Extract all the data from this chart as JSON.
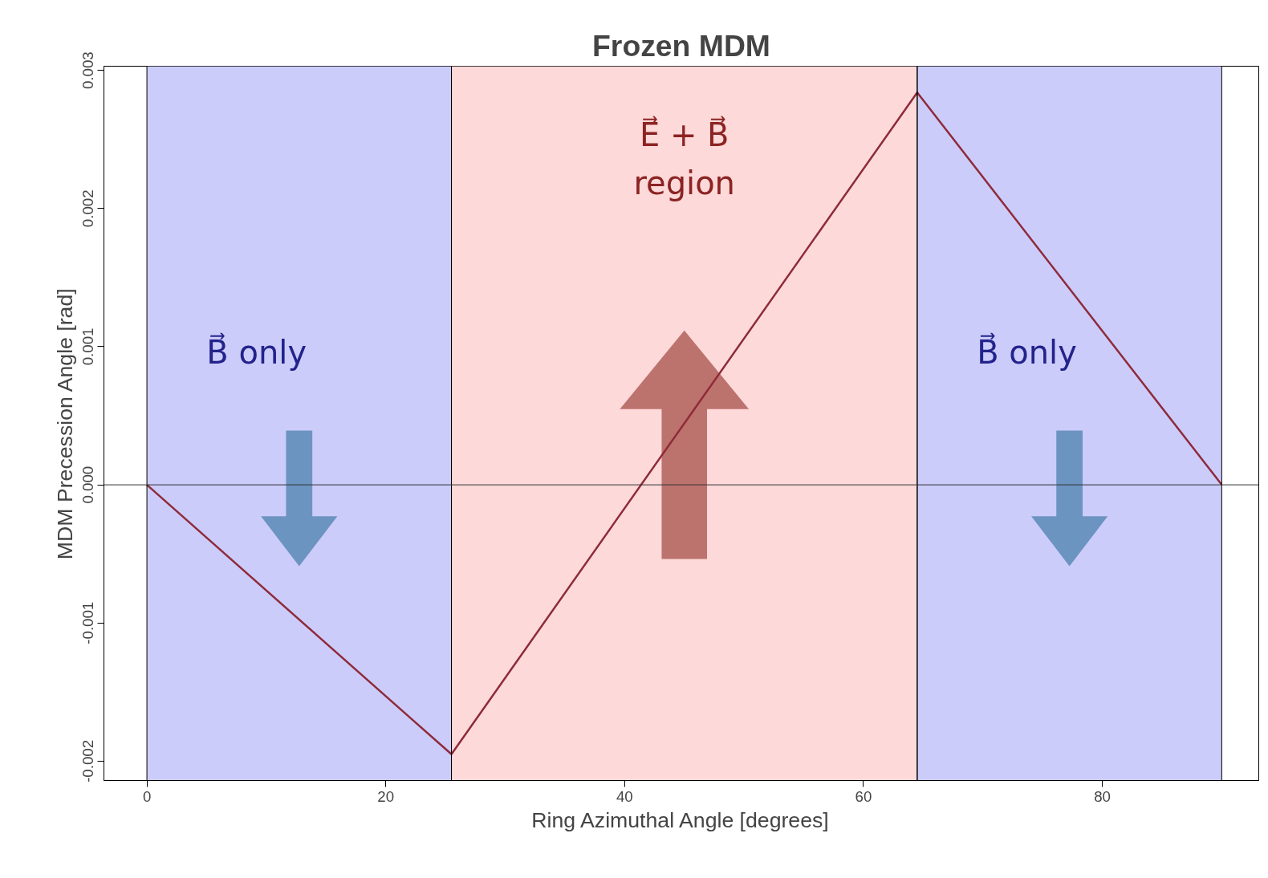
{
  "chart_data": {
    "type": "line",
    "title": "Frozen MDM",
    "xlabel": "Ring Azimuthal Angle [degrees]",
    "ylabel": "MDM Precession Angle [rad]",
    "x": [
      0,
      25.5,
      64.5,
      90
    ],
    "series": [
      {
        "color": "#8e2b3a",
        "values": [
          0,
          -0.00195,
          0.00284,
          0
        ]
      }
    ],
    "xlim": [
      -3.6,
      93.1
    ],
    "ylim": [
      -0.00214,
      0.00303
    ],
    "xticks": [
      0,
      20,
      40,
      60,
      80
    ],
    "yticks": [
      {
        "value": -0.002,
        "label": "-0.002"
      },
      {
        "value": -0.001,
        "label": "-0.001"
      },
      {
        "value": 0,
        "label": "0.000"
      },
      {
        "value": 0.001,
        "label": "0.001"
      },
      {
        "value": 0.002,
        "label": "0.002"
      },
      {
        "value": 0.003,
        "label": "0.003"
      }
    ],
    "ref_lines": [
      {
        "axis": "y",
        "value": 0,
        "color": "#333333"
      }
    ],
    "bands": [
      {
        "axis": "x",
        "from": 0,
        "to": 25.5,
        "label": "B⃗ only",
        "color": "#ccccfb"
      },
      {
        "axis": "x",
        "from": 25.5,
        "to": 64.5,
        "label": "E⃗ + B⃗\nregion",
        "color": "#fdd9d9"
      },
      {
        "axis": "x",
        "from": 64.5,
        "to": 90,
        "label": "B⃗ only",
        "color": "#ccccfb"
      }
    ],
    "grid": false
  }
}
